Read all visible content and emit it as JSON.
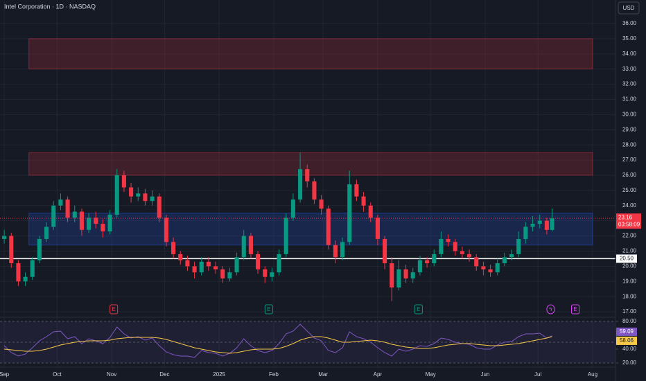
{
  "header": {
    "title": "Intel Corporation · 1D · NASDAQ",
    "currency": "USD"
  },
  "chart_data": [
    {
      "type": "candlestick",
      "name": "INTC",
      "up_color": "#089981",
      "down_color": "#f23645",
      "x": [
        0,
        4,
        8,
        12,
        16,
        20,
        24,
        28,
        32,
        36,
        40,
        44,
        48,
        52,
        56,
        60,
        64,
        68,
        72,
        76,
        80,
        84,
        88,
        92,
        96,
        100,
        104,
        108,
        112,
        116,
        120,
        124,
        128,
        132,
        136,
        140,
        144,
        148,
        152,
        156,
        160,
        164,
        168,
        172,
        176,
        180,
        184,
        188,
        192,
        196,
        200,
        204,
        208,
        212,
        216,
        220,
        224,
        228,
        232,
        236,
        240,
        244,
        248,
        252,
        256,
        260,
        264,
        268,
        272,
        276,
        280,
        284,
        288,
        292,
        296,
        300,
        304,
        308,
        311
      ],
      "open": [
        21.8,
        22.0,
        20.2,
        19.0,
        19.3,
        20.4,
        21.8,
        22.6,
        24.0,
        24.4,
        23.2,
        23.6,
        22.4,
        23.2,
        22.8,
        22.3,
        23.4,
        26.0,
        25.2,
        24.6,
        24.8,
        24.3,
        24.6,
        23.2,
        21.6,
        20.8,
        20.4,
        20.0,
        19.6,
        20.3,
        20.0,
        19.8,
        19.2,
        19.6,
        20.6,
        22.0,
        20.8,
        19.8,
        19.3,
        19.6,
        20.8,
        23.2,
        24.4,
        26.4,
        25.6,
        24.4,
        23.8,
        21.4,
        20.6,
        21.6,
        25.4,
        24.6,
        24.0,
        23.2,
        21.8,
        20.2,
        18.6,
        19.8,
        19.2,
        19.6,
        20.4,
        20.2,
        20.8,
        21.8,
        21.6,
        21.0,
        20.8,
        20.6,
        20.0,
        19.8,
        19.6,
        20.2,
        20.6,
        20.8,
        21.8,
        22.6,
        22.8,
        23.0,
        22.4
      ],
      "high": [
        22.4,
        22.2,
        20.4,
        19.6,
        20.6,
        22.0,
        22.9,
        24.3,
        24.8,
        24.6,
        24.0,
        23.8,
        23.5,
        23.6,
        23.1,
        23.7,
        26.4,
        26.3,
        25.5,
        25.2,
        25.1,
        25.0,
        24.8,
        23.4,
        21.9,
        21.0,
        20.7,
        20.3,
        20.6,
        20.6,
        20.3,
        20.0,
        19.9,
        20.9,
        22.4,
        22.2,
        21.0,
        20.0,
        19.9,
        21.1,
        23.5,
        24.8,
        27.5,
        26.7,
        25.8,
        24.7,
        24.0,
        21.7,
        21.9,
        26.3,
        25.7,
        24.9,
        24.2,
        23.4,
        22.0,
        20.6,
        20.4,
        20.1,
        19.9,
        20.7,
        20.6,
        21.1,
        22.3,
        22.1,
        21.8,
        21.3,
        21.1,
        20.8,
        20.3,
        20.1,
        20.5,
        20.9,
        21.1,
        22.3,
        22.9,
        23.3,
        23.4,
        23.2,
        23.8
      ],
      "low": [
        21.5,
        19.9,
        18.7,
        18.7,
        19.1,
        20.2,
        21.6,
        22.4,
        23.7,
        22.9,
        22.9,
        22.0,
        22.2,
        22.5,
        21.9,
        22.1,
        23.2,
        24.9,
        24.2,
        24.3,
        24.0,
        24.0,
        22.9,
        21.3,
        20.5,
        20.1,
        19.7,
        19.2,
        19.4,
        19.7,
        19.5,
        18.9,
        19.0,
        19.4,
        20.4,
        20.5,
        19.5,
        18.9,
        19.0,
        19.4,
        20.6,
        23.0,
        24.2,
        25.2,
        24.1,
        23.4,
        21.1,
        20.2,
        20.4,
        21.4,
        24.3,
        23.6,
        22.9,
        21.4,
        19.8,
        17.7,
        18.4,
        18.9,
        18.9,
        19.4,
        19.9,
        20.0,
        20.6,
        21.3,
        20.7,
        20.5,
        20.3,
        19.7,
        19.4,
        19.3,
        19.4,
        20.0,
        20.4,
        20.6,
        21.5,
        22.3,
        22.5,
        22.1,
        22.3
      ],
      "close": [
        22.0,
        20.2,
        19.0,
        19.3,
        20.4,
        21.8,
        22.6,
        24.0,
        24.4,
        23.2,
        23.6,
        22.4,
        23.2,
        22.8,
        22.3,
        23.4,
        26.0,
        25.2,
        24.6,
        24.8,
        24.3,
        24.6,
        23.2,
        21.6,
        20.8,
        20.4,
        20.0,
        19.6,
        20.3,
        20.0,
        19.8,
        19.2,
        19.6,
        20.6,
        22.0,
        20.8,
        19.8,
        19.3,
        19.6,
        20.8,
        23.2,
        24.4,
        26.4,
        25.6,
        24.4,
        23.8,
        21.4,
        20.6,
        21.6,
        25.4,
        24.6,
        24.0,
        23.2,
        21.8,
        20.2,
        18.6,
        19.8,
        19.2,
        19.6,
        20.4,
        20.2,
        20.8,
        21.8,
        21.6,
        21.0,
        20.8,
        20.6,
        20.0,
        19.8,
        19.6,
        20.2,
        20.6,
        20.8,
        21.8,
        22.6,
        22.8,
        23.0,
        22.4,
        23.16
      ],
      "countdown": "03:58:09",
      "xlim": [
        -2.4,
        347
      ],
      "xticks": [
        {
          "value": 0,
          "label": "Sep"
        },
        {
          "value": 30,
          "label": "Oct"
        },
        {
          "value": 61,
          "label": "Nov"
        },
        {
          "value": 91,
          "label": "Dec"
        },
        {
          "value": 122,
          "label": "2025"
        },
        {
          "value": 153,
          "label": "Feb"
        },
        {
          "value": 181,
          "label": "Mar"
        },
        {
          "value": 212,
          "label": "Apr"
        },
        {
          "value": 242,
          "label": "May"
        },
        {
          "value": 273,
          "label": "Jun"
        },
        {
          "value": 303,
          "label": "Jul"
        },
        {
          "value": 334,
          "label": "Aug"
        }
      ],
      "ylim": [
        16.73,
        37.55
      ],
      "yticks": [
        {
          "value": 17,
          "label": "17.00"
        },
        {
          "value": 18,
          "label": "18.00"
        },
        {
          "value": 19,
          "label": "19.00"
        },
        {
          "value": 20,
          "label": "20.00"
        },
        {
          "value": 21,
          "label": "21.00"
        },
        {
          "value": 22,
          "label": "22.00"
        },
        {
          "value": 23,
          "label": "23.00"
        },
        {
          "value": 24,
          "label": "24.00"
        },
        {
          "value": 25,
          "label": "25.00"
        },
        {
          "value": 26,
          "label": "26.00"
        },
        {
          "value": 27,
          "label": "27.00"
        },
        {
          "value": 28,
          "label": "28.00"
        },
        {
          "value": 29,
          "label": "29.00"
        },
        {
          "value": 30,
          "label": "30.00"
        },
        {
          "value": 31,
          "label": "31.00"
        },
        {
          "value": 32,
          "label": "32.00"
        },
        {
          "value": 33,
          "label": "33.00"
        },
        {
          "value": 34,
          "label": "34.00"
        },
        {
          "value": 35,
          "label": "35.00"
        },
        {
          "value": 36,
          "label": "36.00"
        }
      ],
      "grid": true,
      "zones": [
        {
          "x": [
            14,
            334
          ],
          "y": [
            33,
            35
          ],
          "color": "#f23645"
        },
        {
          "x": [
            14,
            334
          ],
          "y": [
            26,
            27.5
          ],
          "color": "#f23645"
        },
        {
          "x": [
            14,
            334
          ],
          "y": [
            21.4,
            23.5
          ],
          "color": "#2962ff"
        }
      ],
      "hline": {
        "value": 20.5,
        "label": "20.50",
        "color": "#ffffff"
      },
      "events": [
        {
          "x": 62,
          "label": "E",
          "color": "#f23645"
        },
        {
          "x": 150,
          "label": "E",
          "color": "#089981"
        },
        {
          "x": 235,
          "label": "E",
          "color": "#089981"
        },
        {
          "x": 310,
          "label": "ϟ",
          "color": "#e040fb"
        },
        {
          "x": 324,
          "label": "E",
          "color": "#e040fb"
        }
      ]
    },
    {
      "type": "line",
      "name": "RSI",
      "x": [
        0,
        4,
        8,
        12,
        16,
        20,
        24,
        28,
        32,
        36,
        40,
        44,
        48,
        52,
        56,
        60,
        64,
        68,
        72,
        76,
        80,
        84,
        88,
        92,
        96,
        100,
        104,
        108,
        112,
        116,
        120,
        124,
        128,
        132,
        136,
        140,
        144,
        148,
        152,
        156,
        160,
        164,
        168,
        172,
        176,
        180,
        184,
        188,
        192,
        196,
        200,
        204,
        208,
        212,
        216,
        220,
        224,
        228,
        232,
        236,
        240,
        244,
        248,
        252,
        256,
        260,
        264,
        268,
        272,
        276,
        280,
        284,
        288,
        292,
        296,
        300,
        304,
        308,
        311
      ],
      "series": [
        {
          "color": "#7e57c2",
          "values": [
            45,
            35,
            30,
            33,
            42,
            52,
            58,
            65,
            66,
            55,
            58,
            48,
            55,
            52,
            48,
            57,
            72,
            62,
            56,
            58,
            53,
            56,
            45,
            36,
            32,
            30,
            30,
            28,
            38,
            35,
            34,
            30,
            34,
            42,
            55,
            45,
            38,
            35,
            38,
            48,
            62,
            66,
            76,
            66,
            56,
            52,
            38,
            35,
            42,
            65,
            58,
            55,
            50,
            42,
            35,
            30,
            40,
            37,
            40,
            45,
            44,
            48,
            56,
            54,
            50,
            48,
            47,
            42,
            40,
            40,
            46,
            50,
            51,
            58,
            62,
            62,
            63,
            56,
            59.09
          ]
        },
        {
          "color": "#f7c948",
          "values": [
            40,
            39,
            38,
            37,
            37,
            38,
            40,
            43,
            46,
            48,
            50,
            51,
            52,
            52,
            52,
            53,
            55,
            56,
            57,
            57,
            57,
            57,
            56,
            54,
            51,
            48,
            45,
            42,
            40,
            38,
            36,
            35,
            34,
            35,
            37,
            39,
            40,
            40,
            40,
            41,
            44,
            48,
            53,
            56,
            58,
            58,
            56,
            53,
            50,
            50,
            51,
            52,
            53,
            52,
            50,
            47,
            45,
            43,
            42,
            41,
            41,
            42,
            44,
            46,
            47,
            48,
            48,
            47,
            46,
            45,
            45,
            46,
            47,
            48,
            50,
            52,
            54,
            56,
            58.06
          ]
        }
      ],
      "xlim": [
        -2.4,
        347
      ],
      "ylim": [
        14,
        86
      ],
      "yticks": [
        {
          "value": 20,
          "label": "20.00"
        },
        {
          "value": 40,
          "label": "40.00"
        },
        {
          "value": 80,
          "label": "80.00"
        }
      ],
      "levels": [
        80,
        50,
        20
      ]
    }
  ]
}
